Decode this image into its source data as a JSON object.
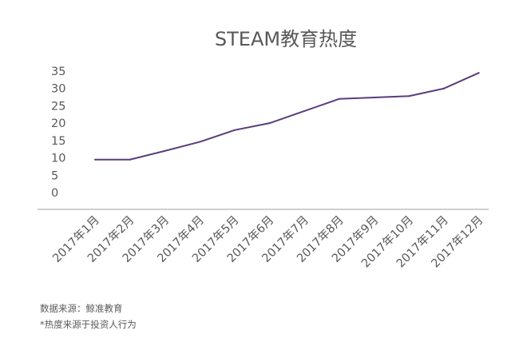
{
  "chart_data": {
    "type": "line",
    "title": "STEAM教育热度",
    "xlabel": "",
    "ylabel": "",
    "categories": [
      "2017年1月",
      "2017年2月",
      "2017年3月",
      "2017年4月",
      "2017年5月",
      "2017年6月",
      "2017年7月",
      "2017年8月",
      "2017年9月",
      "2017年10月",
      "2017年11月",
      "2017年12月"
    ],
    "series": [
      {
        "values": [
          9.5,
          9.5,
          12,
          14.6,
          18,
          20,
          23.5,
          27,
          27.4,
          27.8,
          30,
          34.5
        ]
      }
    ],
    "yticks": [
      "0",
      "5",
      "10",
      "15",
      "20",
      "25",
      "30",
      "35"
    ],
    "ylim": [
      0,
      35
    ],
    "grid": false,
    "legend": "none",
    "colors": {
      "line": "#5b3d7d",
      "axis": "#bfbfbf",
      "text": "#595959"
    }
  },
  "footnotes": {
    "source": "数据来源：鲸准教育",
    "heat": "*热度来源于投资人行为"
  }
}
